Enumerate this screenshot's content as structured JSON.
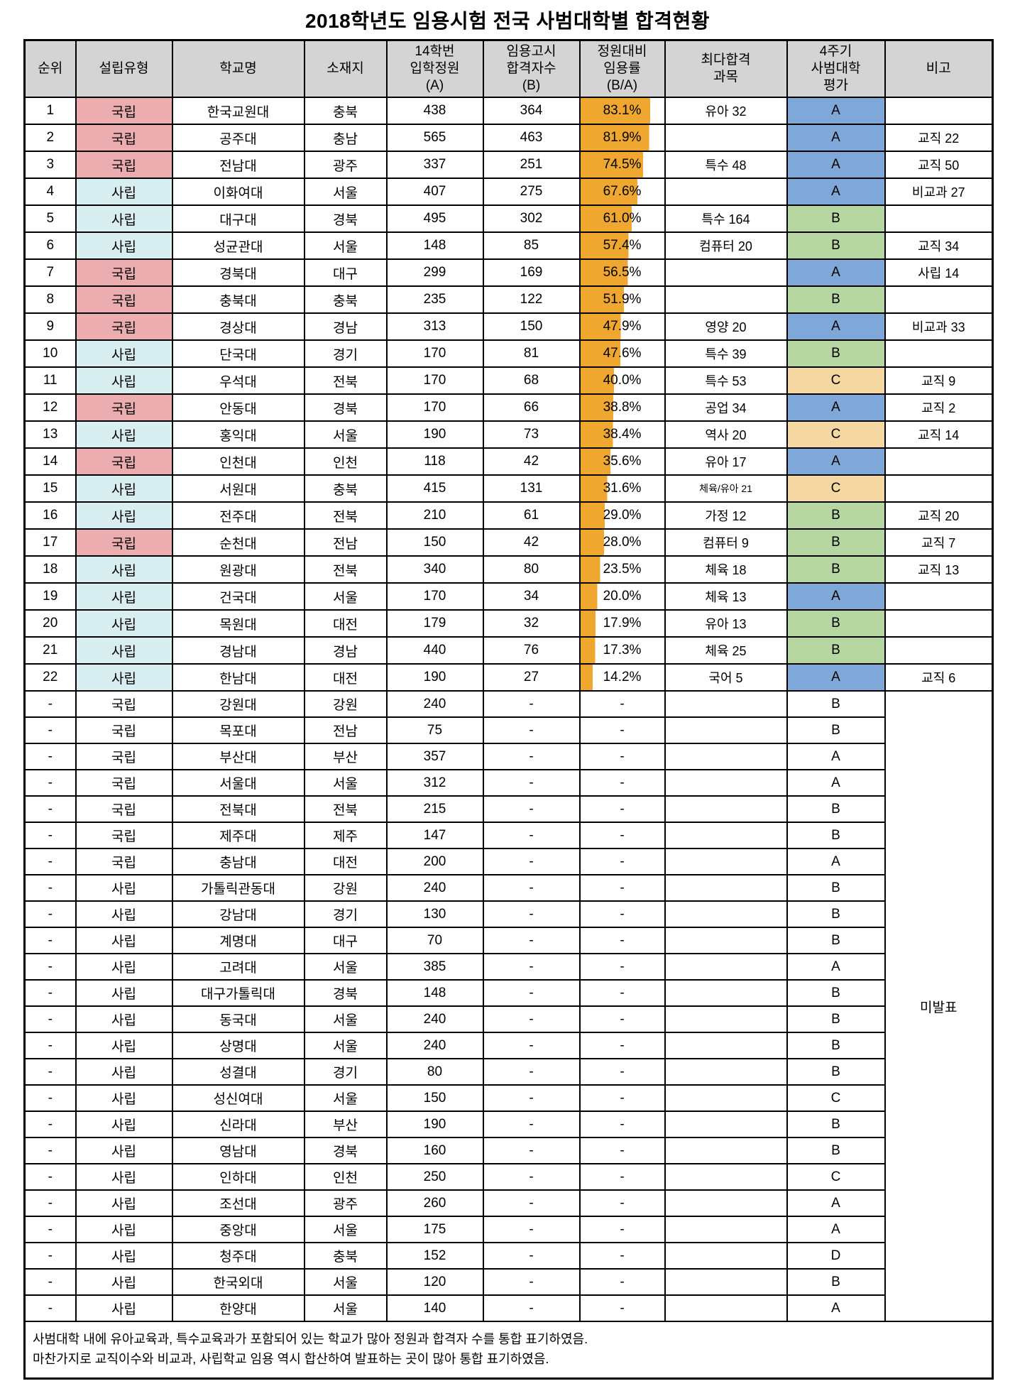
{
  "title": "2018학년도 임용시험 전국 사범대학별 합격현황",
  "colors": {
    "header_bg": "#D4D4D4",
    "national_bg": "#EBADAF",
    "private_bg": "#D9EEF1",
    "rate_bar": "#EFA72F",
    "grade_A_bg": "#7FA8D9",
    "grade_B_bg": "#B6D7A2",
    "grade_C_bg": "#F5D7A2"
  },
  "table": {
    "headers": [
      "순위",
      "설립유형",
      "학교명",
      "소재지",
      "14학번\n입학정원\n(A)",
      "임용고시\n합격자수\n(B)",
      "정원대비\n임용률\n(B/A)",
      "최다합격\n과목",
      "4주기\n사범대학\n평가",
      "비고"
    ],
    "ranked_rows": [
      {
        "rank": "1",
        "type": "국립",
        "school": "한국교원대",
        "region": "충북",
        "quota": "438",
        "passers": "364",
        "rate": "83.1%",
        "rate_pct": 83.1,
        "subject": "유아 32",
        "grade": "A",
        "note": ""
      },
      {
        "rank": "2",
        "type": "국립",
        "school": "공주대",
        "region": "충남",
        "quota": "565",
        "passers": "463",
        "rate": "81.9%",
        "rate_pct": 81.9,
        "subject": "",
        "grade": "A",
        "note": "교직 22"
      },
      {
        "rank": "3",
        "type": "국립",
        "school": "전남대",
        "region": "광주",
        "quota": "337",
        "passers": "251",
        "rate": "74.5%",
        "rate_pct": 74.5,
        "subject": "특수 48",
        "grade": "A",
        "note": "교직 50"
      },
      {
        "rank": "4",
        "type": "사립",
        "school": "이화여대",
        "region": "서울",
        "quota": "407",
        "passers": "275",
        "rate": "67.6%",
        "rate_pct": 67.6,
        "subject": "",
        "grade": "A",
        "note": "비교과 27"
      },
      {
        "rank": "5",
        "type": "사립",
        "school": "대구대",
        "region": "경북",
        "quota": "495",
        "passers": "302",
        "rate": "61.0%",
        "rate_pct": 61.0,
        "subject": "특수 164",
        "grade": "B",
        "note": ""
      },
      {
        "rank": "6",
        "type": "사립",
        "school": "성균관대",
        "region": "서울",
        "quota": "148",
        "passers": "85",
        "rate": "57.4%",
        "rate_pct": 57.4,
        "subject": "컴퓨터 20",
        "grade": "B",
        "note": "교직 34"
      },
      {
        "rank": "7",
        "type": "국립",
        "school": "경북대",
        "region": "대구",
        "quota": "299",
        "passers": "169",
        "rate": "56.5%",
        "rate_pct": 56.5,
        "subject": "",
        "grade": "A",
        "note": "사립 14"
      },
      {
        "rank": "8",
        "type": "국립",
        "school": "충북대",
        "region": "충북",
        "quota": "235",
        "passers": "122",
        "rate": "51.9%",
        "rate_pct": 51.9,
        "subject": "",
        "grade": "B",
        "note": ""
      },
      {
        "rank": "9",
        "type": "국립",
        "school": "경상대",
        "region": "경남",
        "quota": "313",
        "passers": "150",
        "rate": "47.9%",
        "rate_pct": 47.9,
        "subject": "영양 20",
        "grade": "A",
        "note": "비교과 33"
      },
      {
        "rank": "10",
        "type": "사립",
        "school": "단국대",
        "region": "경기",
        "quota": "170",
        "passers": "81",
        "rate": "47.6%",
        "rate_pct": 47.6,
        "subject": "특수 39",
        "grade": "B",
        "note": ""
      },
      {
        "rank": "11",
        "type": "사립",
        "school": "우석대",
        "region": "전북",
        "quota": "170",
        "passers": "68",
        "rate": "40.0%",
        "rate_pct": 40.0,
        "subject": "특수 53",
        "grade": "C",
        "note": "교직 9"
      },
      {
        "rank": "12",
        "type": "국립",
        "school": "안동대",
        "region": "경북",
        "quota": "170",
        "passers": "66",
        "rate": "38.8%",
        "rate_pct": 38.8,
        "subject": "공업 34",
        "grade": "A",
        "note": "교직 2"
      },
      {
        "rank": "13",
        "type": "사립",
        "school": "홍익대",
        "region": "서울",
        "quota": "190",
        "passers": "73",
        "rate": "38.4%",
        "rate_pct": 38.4,
        "subject": "역사 20",
        "grade": "C",
        "note": "교직 14"
      },
      {
        "rank": "14",
        "type": "국립",
        "school": "인천대",
        "region": "인천",
        "quota": "118",
        "passers": "42",
        "rate": "35.6%",
        "rate_pct": 35.6,
        "subject": "유아 17",
        "grade": "A",
        "note": ""
      },
      {
        "rank": "15",
        "type": "사립",
        "school": "서원대",
        "region": "충북",
        "quota": "415",
        "passers": "131",
        "rate": "31.6%",
        "rate_pct": 31.6,
        "subject": "체육/유아 21",
        "grade": "C",
        "note": "",
        "subject_small": true
      },
      {
        "rank": "16",
        "type": "사립",
        "school": "전주대",
        "region": "전북",
        "quota": "210",
        "passers": "61",
        "rate": "29.0%",
        "rate_pct": 29.0,
        "subject": "가정 12",
        "grade": "B",
        "note": "교직 20"
      },
      {
        "rank": "17",
        "type": "국립",
        "school": "순천대",
        "region": "전남",
        "quota": "150",
        "passers": "42",
        "rate": "28.0%",
        "rate_pct": 28.0,
        "subject": "컴퓨터 9",
        "grade": "B",
        "note": "교직 7"
      },
      {
        "rank": "18",
        "type": "사립",
        "school": "원광대",
        "region": "전북",
        "quota": "340",
        "passers": "80",
        "rate": "23.5%",
        "rate_pct": 23.5,
        "subject": "체육 18",
        "grade": "B",
        "note": "교직 13"
      },
      {
        "rank": "19",
        "type": "사립",
        "school": "건국대",
        "region": "서울",
        "quota": "170",
        "passers": "34",
        "rate": "20.0%",
        "rate_pct": 20.0,
        "subject": "체육 13",
        "grade": "A",
        "note": ""
      },
      {
        "rank": "20",
        "type": "사립",
        "school": "목원대",
        "region": "대전",
        "quota": "179",
        "passers": "32",
        "rate": "17.9%",
        "rate_pct": 17.9,
        "subject": "유아 13",
        "grade": "B",
        "note": ""
      },
      {
        "rank": "21",
        "type": "사립",
        "school": "경남대",
        "region": "경남",
        "quota": "440",
        "passers": "76",
        "rate": "17.3%",
        "rate_pct": 17.3,
        "subject": "체육 25",
        "grade": "B",
        "note": ""
      },
      {
        "rank": "22",
        "type": "사립",
        "school": "한남대",
        "region": "대전",
        "quota": "190",
        "passers": "27",
        "rate": "14.2%",
        "rate_pct": 14.2,
        "subject": "국어 5",
        "grade": "A",
        "note": "교직 6"
      }
    ],
    "pending_rows": [
      {
        "rank": "-",
        "type": "국립",
        "school": "강원대",
        "region": "강원",
        "quota": "240",
        "passers": "-",
        "rate": "-",
        "subject": "",
        "grade": "B"
      },
      {
        "rank": "-",
        "type": "국립",
        "school": "목포대",
        "region": "전남",
        "quota": "75",
        "passers": "-",
        "rate": "-",
        "subject": "",
        "grade": "B"
      },
      {
        "rank": "-",
        "type": "국립",
        "school": "부산대",
        "region": "부산",
        "quota": "357",
        "passers": "-",
        "rate": "-",
        "subject": "",
        "grade": "A"
      },
      {
        "rank": "-",
        "type": "국립",
        "school": "서울대",
        "region": "서울",
        "quota": "312",
        "passers": "-",
        "rate": "-",
        "subject": "",
        "grade": "A"
      },
      {
        "rank": "-",
        "type": "국립",
        "school": "전북대",
        "region": "전북",
        "quota": "215",
        "passers": "-",
        "rate": "-",
        "subject": "",
        "grade": "B"
      },
      {
        "rank": "-",
        "type": "국립",
        "school": "제주대",
        "region": "제주",
        "quota": "147",
        "passers": "-",
        "rate": "-",
        "subject": "",
        "grade": "B"
      },
      {
        "rank": "-",
        "type": "국립",
        "school": "충남대",
        "region": "대전",
        "quota": "200",
        "passers": "-",
        "rate": "-",
        "subject": "",
        "grade": "A"
      },
      {
        "rank": "-",
        "type": "사립",
        "school": "가톨릭관동대",
        "region": "강원",
        "quota": "240",
        "passers": "-",
        "rate": "-",
        "subject": "",
        "grade": "B"
      },
      {
        "rank": "-",
        "type": "사립",
        "school": "강남대",
        "region": "경기",
        "quota": "130",
        "passers": "-",
        "rate": "-",
        "subject": "",
        "grade": "B"
      },
      {
        "rank": "-",
        "type": "사립",
        "school": "계명대",
        "region": "대구",
        "quota": "70",
        "passers": "-",
        "rate": "-",
        "subject": "",
        "grade": "B"
      },
      {
        "rank": "-",
        "type": "사립",
        "school": "고려대",
        "region": "서울",
        "quota": "385",
        "passers": "-",
        "rate": "-",
        "subject": "",
        "grade": "A"
      },
      {
        "rank": "-",
        "type": "사립",
        "school": "대구가톨릭대",
        "region": "경북",
        "quota": "148",
        "passers": "-",
        "rate": "-",
        "subject": "",
        "grade": "B"
      },
      {
        "rank": "-",
        "type": "사립",
        "school": "동국대",
        "region": "서울",
        "quota": "240",
        "passers": "-",
        "rate": "-",
        "subject": "",
        "grade": "B"
      },
      {
        "rank": "-",
        "type": "사립",
        "school": "상명대",
        "region": "서울",
        "quota": "240",
        "passers": "-",
        "rate": "-",
        "subject": "",
        "grade": "B"
      },
      {
        "rank": "-",
        "type": "사립",
        "school": "성결대",
        "region": "경기",
        "quota": "80",
        "passers": "-",
        "rate": "-",
        "subject": "",
        "grade": "B"
      },
      {
        "rank": "-",
        "type": "사립",
        "school": "성신여대",
        "region": "서울",
        "quota": "150",
        "passers": "-",
        "rate": "-",
        "subject": "",
        "grade": "C"
      },
      {
        "rank": "-",
        "type": "사립",
        "school": "신라대",
        "region": "부산",
        "quota": "190",
        "passers": "-",
        "rate": "-",
        "subject": "",
        "grade": "B"
      },
      {
        "rank": "-",
        "type": "사립",
        "school": "영남대",
        "region": "경북",
        "quota": "160",
        "passers": "-",
        "rate": "-",
        "subject": "",
        "grade": "B"
      },
      {
        "rank": "-",
        "type": "사립",
        "school": "인하대",
        "region": "인천",
        "quota": "250",
        "passers": "-",
        "rate": "-",
        "subject": "",
        "grade": "C"
      },
      {
        "rank": "-",
        "type": "사립",
        "school": "조선대",
        "region": "광주",
        "quota": "260",
        "passers": "-",
        "rate": "-",
        "subject": "",
        "grade": "A"
      },
      {
        "rank": "-",
        "type": "사립",
        "school": "중앙대",
        "region": "서울",
        "quota": "175",
        "passers": "-",
        "rate": "-",
        "subject": "",
        "grade": "A"
      },
      {
        "rank": "-",
        "type": "사립",
        "school": "청주대",
        "region": "충북",
        "quota": "152",
        "passers": "-",
        "rate": "-",
        "subject": "",
        "grade": "D"
      },
      {
        "rank": "-",
        "type": "사립",
        "school": "한국외대",
        "region": "서울",
        "quota": "120",
        "passers": "-",
        "rate": "-",
        "subject": "",
        "grade": "B"
      },
      {
        "rank": "-",
        "type": "사립",
        "school": "한양대",
        "region": "서울",
        "quota": "140",
        "passers": "-",
        "rate": "-",
        "subject": "",
        "grade": "A"
      }
    ],
    "pending_note": "미발표"
  },
  "footnotes": [
    "사범대학 내에 유아교육과, 특수교육과가 포함되어 있는 학교가 많아 정원과 합격자 수를 통합 표기하였음.",
    "마찬가지로 교직이수와 비교과, 사립학교 임용 역시 합산하여 발표하는 곳이 많아 통합 표기하였음."
  ]
}
